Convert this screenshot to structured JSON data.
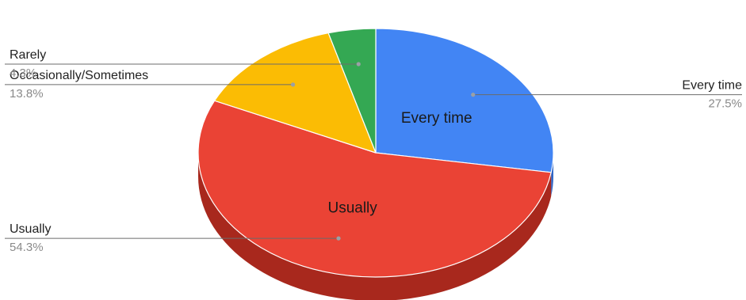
{
  "chart_data": {
    "type": "pie",
    "three_d": true,
    "title": "",
    "categories": [
      "Every time",
      "Usually",
      "Occasionally/Sometimes",
      "Rarely"
    ],
    "values": [
      27.5,
      54.3,
      13.8,
      4.3
    ],
    "value_labels": [
      "27.5%",
      "54.3%",
      "13.8%",
      "4.3%"
    ],
    "colors": [
      "#4285f4",
      "#ea4335",
      "#fbbc04",
      "#34a853"
    ],
    "side_colors": [
      "#2f66c7",
      "#a8281d",
      "#c98f00",
      "#23773a"
    ],
    "inside_labels": [
      "Every time",
      "Usually",
      "",
      ""
    ],
    "legend": "none"
  }
}
